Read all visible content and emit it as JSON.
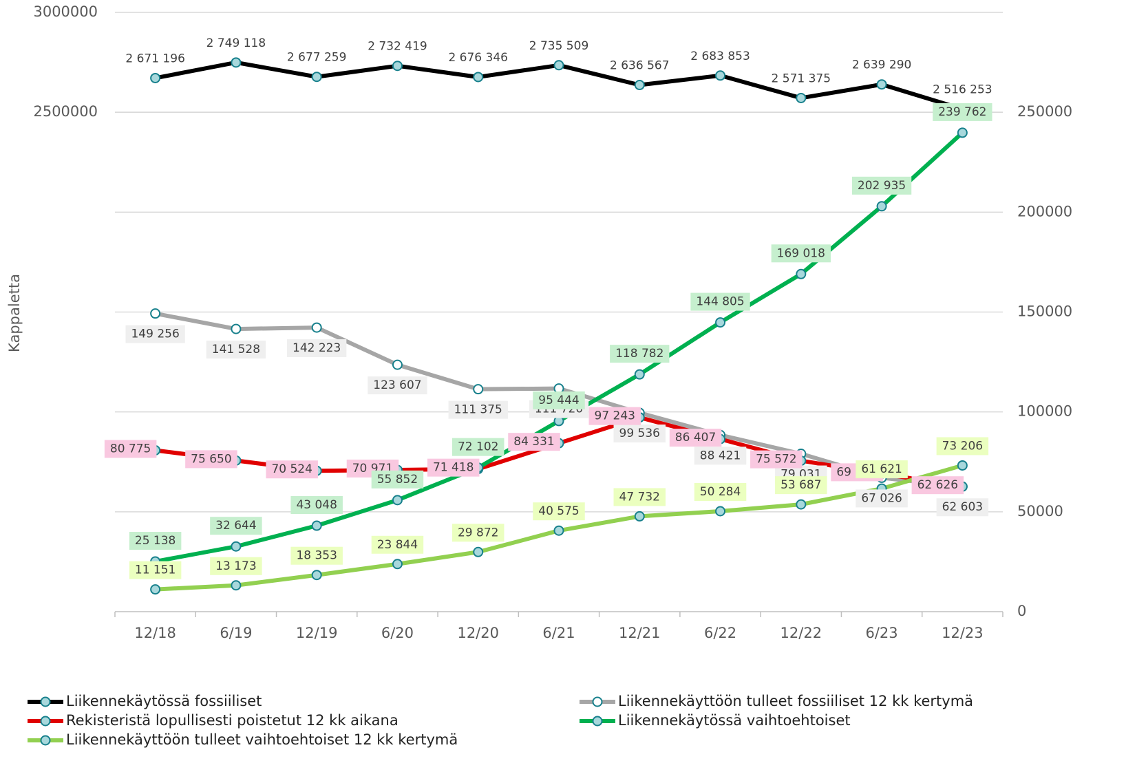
{
  "chart_data": {
    "type": "line",
    "y_label": "Kappaletta",
    "categories": [
      "12/18",
      "6/19",
      "12/19",
      "6/20",
      "12/20",
      "6/21",
      "12/21",
      "6/22",
      "12/22",
      "6/23",
      "12/23"
    ],
    "ylim": [
      0,
      3000000
    ],
    "yticks": [
      2500000,
      3000000
    ],
    "y2lim": [
      0,
      300000
    ],
    "y2ticks": [
      0,
      50000,
      100000,
      150000,
      200000,
      250000
    ],
    "grid": true,
    "legend": "bottom",
    "series": [
      {
        "name": "Liikennekäytössä fossiiliset",
        "color": "#000000",
        "axis": "y",
        "values": [
          2671196,
          2749118,
          2677259,
          2732419,
          2676346,
          2735509,
          2636567,
          2683853,
          2571375,
          2639290,
          2516253
        ],
        "value_labels": [
          "2 671 196",
          "2 749 118",
          "2 677 259",
          "2 732 419",
          "2 676 346",
          "2 735 509",
          "2 636 567",
          "2 683 853",
          "2 571 375",
          "2 639 290",
          "2 516 253"
        ]
      },
      {
        "name": "Liikennekäyttöön tulleet fossiiliset 12 kk kertymä",
        "color": "#a6a6a6",
        "axis": "y2",
        "values": [
          149256,
          141528,
          142223,
          123607,
          111375,
          111720,
          99536,
          88421,
          79031,
          67026,
          62603
        ],
        "value_labels": [
          "149 256",
          "141 528",
          "142 223",
          "123 607",
          "111 375",
          "111 720",
          "99 536",
          "88 421",
          "79 031",
          "67 026",
          "62 603"
        ]
      },
      {
        "name": "Rekisteristä lopullisesti poistetut 12 kk aikana",
        "color": "#e00000",
        "axis": "y2",
        "values": [
          80775,
          75650,
          70524,
          70971,
          71418,
          84331,
          97243,
          86407,
          75572,
          69099,
          62626
        ],
        "value_labels": [
          "80 775",
          "75 650",
          "70 524",
          "70 971",
          "71 418",
          "84 331",
          "97 243",
          "86 407",
          "75 572",
          "69 099",
          "62 626"
        ]
      },
      {
        "name": "Liikennekäytössä vaihtoehtoiset",
        "color": "#00b050",
        "axis": "y2",
        "values": [
          25138,
          32644,
          43048,
          55852,
          72102,
          95444,
          118782,
          144805,
          169018,
          202935,
          239762
        ],
        "value_labels": [
          "25 138",
          "32 644",
          "43 048",
          "55 852",
          "72 102",
          "95 444",
          "118 782",
          "144 805",
          "169 018",
          "202 935",
          "239 762"
        ]
      },
      {
        "name": "Liikennekäyttöön tulleet vaihtoehtoiset 12 kk kertymä",
        "color": "#92d050",
        "axis": "y2",
        "values": [
          11151,
          13173,
          18353,
          23844,
          29872,
          40575,
          47732,
          50284,
          53687,
          61621,
          73206
        ],
        "value_labels": [
          "11 151",
          "13 173",
          "18 353",
          "23 844",
          "29 872",
          "40 575",
          "47 732",
          "50 284",
          "53 687",
          "61 621",
          "73 206"
        ]
      }
    ]
  }
}
